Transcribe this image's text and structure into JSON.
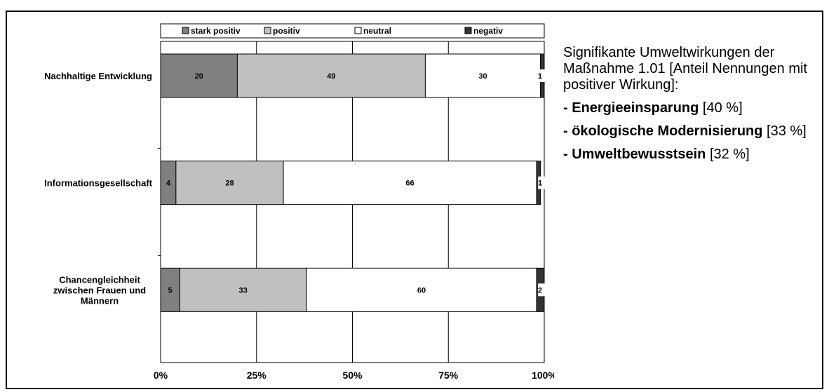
{
  "chart_data": {
    "type": "bar",
    "orientation": "horizontal",
    "stacked": true,
    "categories": [
      "Nachhaltige Entwicklung",
      "Informationsgesellschaft",
      "Chancengleichheit zwischen Frauen und Männern"
    ],
    "series": [
      {
        "name": "stark positiv",
        "color": "#808080",
        "values": [
          20,
          4,
          5
        ]
      },
      {
        "name": "positiv",
        "color": "#c0c0c0",
        "values": [
          49,
          28,
          33
        ]
      },
      {
        "name": "neutral",
        "color": "#ffffff",
        "values": [
          30,
          66,
          60
        ]
      },
      {
        "name": "negativ",
        "color": "#333333",
        "values": [
          1,
          1,
          2
        ]
      }
    ],
    "data_labels": [
      [
        "20",
        "49",
        "30",
        "1"
      ],
      [
        "4",
        "28",
        "66",
        "1"
      ],
      [
        "5",
        "33",
        "60",
        "2"
      ]
    ],
    "x_ticks": [
      "0%",
      "25%",
      "50%",
      "75%",
      "100%"
    ],
    "xlim": [
      0,
      100
    ],
    "grid": true,
    "legend_position": "top"
  },
  "note": {
    "intro": "Signifikante Umweltwirkungen der Maßnahme 1.01 [Anteil Nennungen mit positiver Wirkung]:",
    "items": [
      {
        "label": "- Energieeinsparung",
        "value": " [40 %]"
      },
      {
        "label": "- ökologische Modernisierung",
        "value": " [33 %]"
      },
      {
        "label": "- Umweltbewusstsein",
        "value": " [32 %]"
      }
    ]
  }
}
